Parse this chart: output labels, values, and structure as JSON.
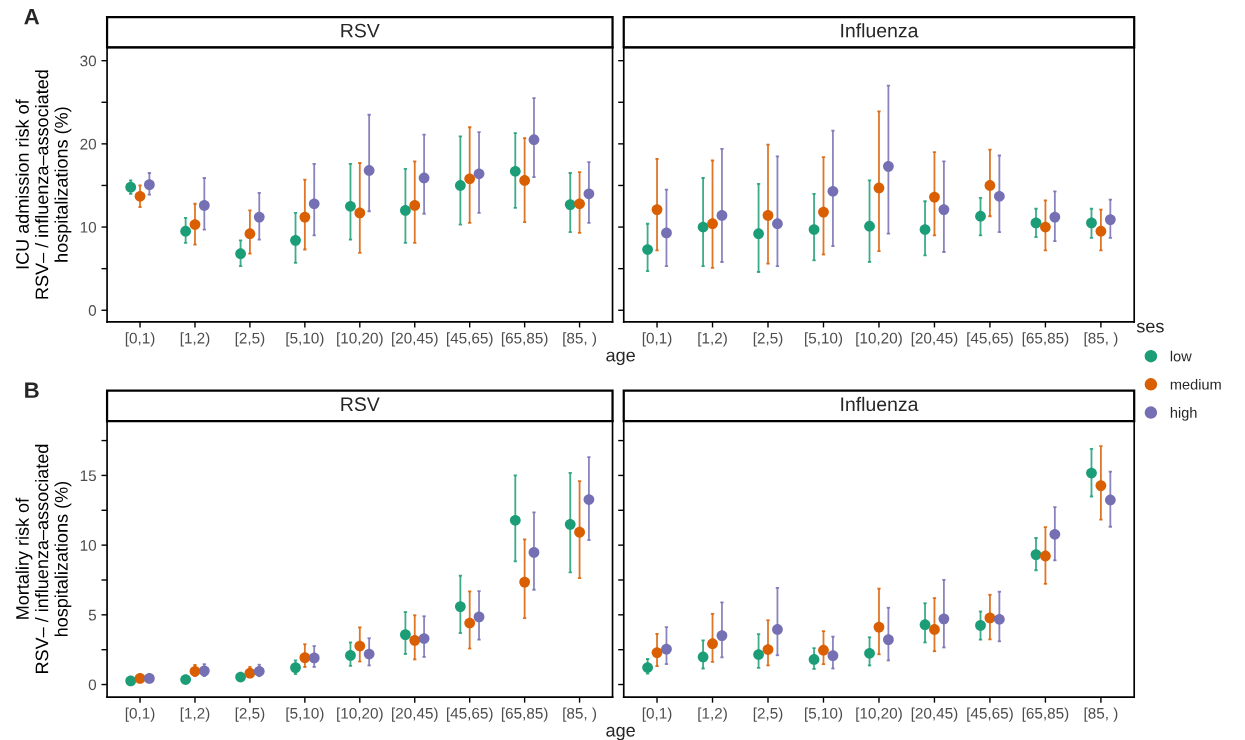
{
  "chart_data": [
    {
      "type": "scatter",
      "title": "RSV",
      "annotations": [
        "A"
      ],
      "xlabel": "age",
      "ylabel": "ICU admission risk of\nRSV– / influenza–associated\nhospitalizations (%)",
      "legend_title": "ses",
      "legend": "right",
      "marker": "circle",
      "ylim": [
        -1.4,
        31.6
      ],
      "yticks": [
        0,
        {
          "value": 5,
          "label": null
        },
        10,
        {
          "value": 15,
          "label": null
        },
        20,
        {
          "value": 25,
          "label": null
        },
        30
      ],
      "categories": [
        "[0,1)",
        "[1,2)",
        "[2,5)",
        "[5,10)",
        "[10,20)",
        "[20,45)",
        "[45,65)",
        "[65,85)",
        "[85, )"
      ],
      "series": [
        {
          "name": "low",
          "color": "#1b9e77",
          "values": [
            14.8,
            9.5,
            6.8,
            8.4,
            12.5,
            12.0,
            15.0,
            16.7,
            12.7
          ],
          "errors": [
            [
              14.0,
              15.6
            ],
            [
              8.1,
              11.1
            ],
            [
              5.3,
              8.4
            ],
            [
              5.7,
              11.7
            ],
            [
              8.5,
              17.6
            ],
            [
              8.1,
              17.0
            ],
            [
              10.3,
              20.9
            ],
            [
              12.3,
              21.3
            ],
            [
              9.4,
              16.5
            ]
          ]
        },
        {
          "name": "medium",
          "color": "#d95f02",
          "values": [
            13.7,
            10.3,
            9.2,
            11.2,
            11.7,
            12.6,
            15.8,
            15.6,
            12.8
          ],
          "errors": [
            [
              12.4,
              15.0
            ],
            [
              7.9,
              12.8
            ],
            [
              6.8,
              12.0
            ],
            [
              7.3,
              15.7
            ],
            [
              6.9,
              17.7
            ],
            [
              8.1,
              17.9
            ],
            [
              10.5,
              22.0
            ],
            [
              10.6,
              20.7
            ],
            [
              9.3,
              16.6
            ]
          ]
        },
        {
          "name": "high",
          "color": "#7570b3",
          "values": [
            15.1,
            12.6,
            11.2,
            12.8,
            16.8,
            15.9,
            16.4,
            20.5,
            14.0
          ],
          "errors": [
            [
              13.9,
              16.5
            ],
            [
              9.7,
              15.9
            ],
            [
              8.5,
              14.1
            ],
            [
              9.0,
              17.6
            ],
            [
              11.9,
              23.5
            ],
            [
              11.6,
              21.1
            ],
            [
              11.7,
              21.4
            ],
            [
              16.0,
              25.5
            ],
            [
              10.5,
              17.8
            ]
          ]
        }
      ]
    },
    {
      "type": "scatter",
      "title": "Influenza",
      "marker": "circle",
      "tick_labels": "x",
      "ylim": [
        -1.4,
        31.6
      ],
      "yticks": [
        0,
        {
          "value": 5,
          "label": null
        },
        10,
        {
          "value": 15,
          "label": null
        },
        20,
        {
          "value": 25,
          "label": null
        },
        30
      ],
      "categories": [
        "[0,1)",
        "[1,2)",
        "[2,5)",
        "[5,10)",
        "[10,20)",
        "[20,45)",
        "[45,65)",
        "[65,85)",
        "[85, )"
      ],
      "series": [
        {
          "color": "#1b9e77",
          "values": [
            7.3,
            10.0,
            9.2,
            9.7,
            10.1,
            9.7,
            11.3,
            10.5,
            10.5
          ],
          "errors": [
            [
              4.7,
              10.4
            ],
            [
              5.3,
              15.9
            ],
            [
              4.6,
              15.2
            ],
            [
              6.0,
              14.0
            ],
            [
              5.8,
              15.6
            ],
            [
              6.6,
              13.1
            ],
            [
              9.0,
              13.5
            ],
            [
              8.8,
              12.2
            ],
            [
              8.7,
              12.2
            ]
          ]
        },
        {
          "color": "#d95f02",
          "values": [
            12.1,
            10.4,
            11.4,
            11.8,
            14.7,
            13.6,
            15.0,
            10.0,
            9.5
          ],
          "errors": [
            [
              7.2,
              18.2
            ],
            [
              5.1,
              18.0
            ],
            [
              5.6,
              19.9
            ],
            [
              6.7,
              18.4
            ],
            [
              7.1,
              23.9
            ],
            [
              9.0,
              19.0
            ],
            [
              11.3,
              19.3
            ],
            [
              7.2,
              13.2
            ],
            [
              7.2,
              12.1
            ]
          ]
        },
        {
          "color": "#7570b3",
          "values": [
            9.3,
            11.4,
            10.4,
            14.3,
            17.3,
            12.1,
            13.7,
            11.2,
            10.9
          ],
          "errors": [
            [
              5.3,
              14.5
            ],
            [
              5.8,
              19.4
            ],
            [
              5.3,
              18.5
            ],
            [
              7.7,
              21.6
            ],
            [
              9.2,
              27.0
            ],
            [
              7.0,
              17.9
            ],
            [
              9.4,
              18.6
            ],
            [
              8.3,
              14.3
            ],
            [
              8.7,
              13.3
            ]
          ]
        }
      ]
    },
    {
      "type": "scatter",
      "title": "RSV",
      "annotations": [
        "B"
      ],
      "xlabel": "age",
      "ylabel": "Mortaliry risk of\nRSV– / influenza–associated\nhospitalizations (%)",
      "marker": "circle",
      "ylim": [
        -0.9,
        18.9
      ],
      "yticks": [
        0,
        {
          "value": 2.5,
          "label": null
        },
        5,
        {
          "value": 7.5,
          "label": null
        },
        10,
        {
          "value": 12.5,
          "label": null
        },
        15,
        {
          "value": 17.5,
          "label": null
        }
      ],
      "categories": [
        "[0,1)",
        "[1,2)",
        "[2,5)",
        "[5,10)",
        "[10,20)",
        "[20,45)",
        "[45,65)",
        "[65,85)",
        "[85, )"
      ],
      "series": [
        {
          "color": "#1b9e77",
          "values": [
            0.26,
            0.36,
            0.54,
            1.21,
            2.09,
            3.58,
            5.59,
            11.78,
            11.49
          ],
          "errors": [
            [
              0.2,
              0.33
            ],
            [
              0.3,
              0.43
            ],
            [
              0.46,
              0.63
            ],
            [
              0.75,
              1.73
            ],
            [
              1.34,
              3.02
            ],
            [
              2.19,
              5.2
            ],
            [
              3.69,
              7.81
            ],
            [
              8.84,
              15.0
            ],
            [
              8.04,
              15.18
            ]
          ]
        },
        {
          "color": "#d95f02",
          "values": [
            0.44,
            0.95,
            0.82,
            1.93,
            2.76,
            3.17,
            4.41,
            7.35,
            10.93
          ],
          "errors": [
            [
              0.36,
              0.53
            ],
            [
              0.6,
              1.4
            ],
            [
              0.57,
              1.26
            ],
            [
              1.26,
              2.89
            ],
            [
              1.65,
              4.1
            ],
            [
              1.8,
              4.97
            ],
            [
              2.58,
              6.68
            ],
            [
              4.77,
              10.41
            ],
            [
              7.63,
              14.59
            ]
          ]
        },
        {
          "color": "#7570b3",
          "values": [
            0.44,
            0.98,
            0.95,
            1.91,
            2.19,
            3.3,
            4.85,
            9.48,
            13.27
          ],
          "errors": [
            [
              0.36,
              0.53
            ],
            [
              0.6,
              1.47
            ],
            [
              0.6,
              1.42
            ],
            [
              1.26,
              2.76
            ],
            [
              1.37,
              3.32
            ],
            [
              1.98,
              4.9
            ],
            [
              3.22,
              6.7
            ],
            [
              6.8,
              12.35
            ],
            [
              10.36,
              16.31
            ]
          ]
        }
      ]
    },
    {
      "type": "scatter",
      "title": "Influenza",
      "marker": "circle",
      "tick_labels": "x",
      "ylim": [
        -0.9,
        18.9
      ],
      "yticks": [
        0,
        {
          "value": 2.5,
          "label": null
        },
        5,
        {
          "value": 7.5,
          "label": null
        },
        10,
        {
          "value": 12.5,
          "label": null
        },
        15,
        {
          "value": 17.5,
          "label": null
        }
      ],
      "categories": [
        "[0,1)",
        "[1,2)",
        "[2,5)",
        "[5,10)",
        "[10,20)",
        "[20,45)",
        "[45,65)",
        "[65,85)",
        "[85, )"
      ],
      "series": [
        {
          "color": "#1b9e77",
          "values": [
            1.22,
            1.98,
            2.15,
            1.8,
            2.24,
            4.29,
            4.24,
            9.32,
            15.17
          ],
          "errors": [
            [
              0.78,
              1.83
            ],
            [
              1.15,
              3.17
            ],
            [
              1.2,
              3.61
            ],
            [
              1.12,
              2.61
            ],
            [
              1.37,
              3.39
            ],
            [
              3.02,
              5.83
            ],
            [
              3.22,
              5.24
            ],
            [
              8.2,
              10.51
            ],
            [
              13.49,
              16.9
            ]
          ]
        },
        {
          "color": "#d95f02",
          "values": [
            2.29,
            2.93,
            2.51,
            2.46,
            4.12,
            3.95,
            4.78,
            9.22,
            14.27
          ],
          "errors": [
            [
              1.32,
              3.63
            ],
            [
              1.63,
              5.07
            ],
            [
              1.37,
              4.61
            ],
            [
              1.46,
              3.83
            ],
            [
              2.17,
              6.88
            ],
            [
              2.39,
              6.2
            ],
            [
              3.24,
              6.44
            ],
            [
              7.22,
              11.29
            ],
            [
              11.83,
              17.1
            ]
          ]
        },
        {
          "color": "#7570b3",
          "values": [
            2.54,
            3.51,
            3.95,
            2.07,
            3.22,
            4.71,
            4.68,
            10.78,
            13.24
          ],
          "errors": [
            [
              1.46,
              4.12
            ],
            [
              1.95,
              5.9
            ],
            [
              2.1,
              6.93
            ],
            [
              1.15,
              3.44
            ],
            [
              1.73,
              5.51
            ],
            [
              2.66,
              7.51
            ],
            [
              3.1,
              6.66
            ],
            [
              8.9,
              12.73
            ],
            [
              11.32,
              15.27
            ]
          ]
        }
      ]
    }
  ]
}
